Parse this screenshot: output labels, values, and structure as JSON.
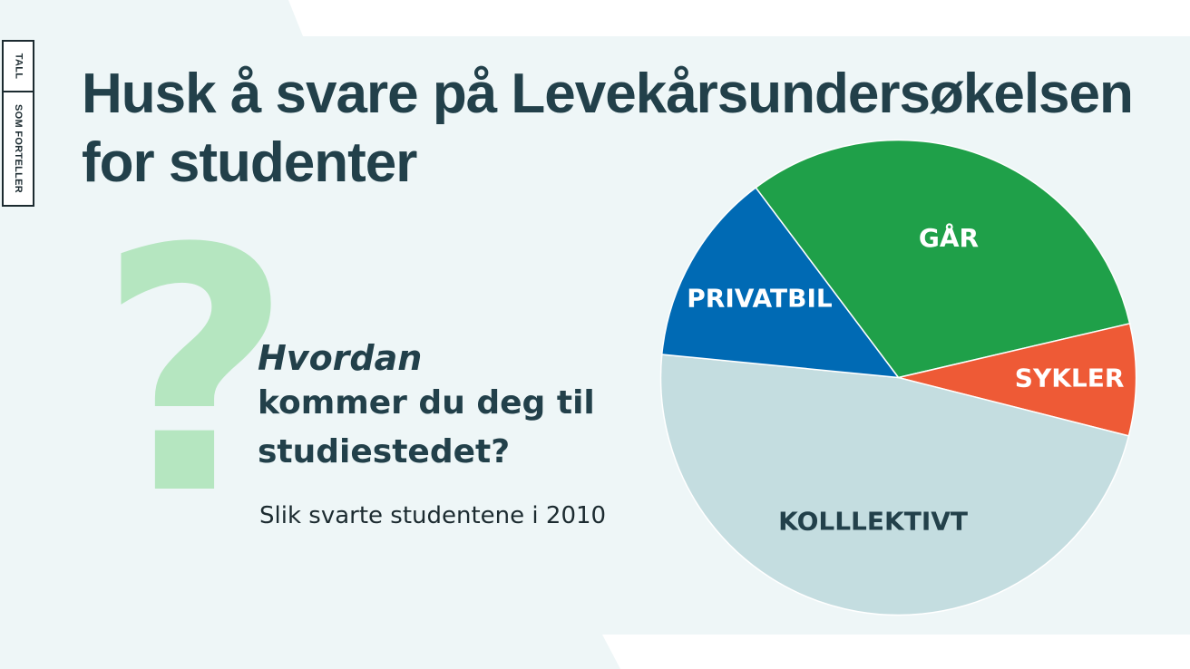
{
  "logo": {
    "top": "TALL",
    "bottom": "SOM FORTELLER"
  },
  "title": "Husk å svare på Levekårsundersøkelsen for studenter",
  "question": {
    "emphasis": "Hvordan",
    "rest": "kommer du deg til studiestedet?"
  },
  "subtitle": "Slik svarte studentene i 2010",
  "colors": {
    "panel": "#eef6f7",
    "title": "#22404a",
    "question_mark": "#b5e6c0"
  },
  "chart_data": {
    "type": "pie",
    "title": "",
    "series": [
      {
        "label": "GÅR",
        "value": 31.6,
        "color": "#1fa049",
        "label_color": "#ffffff"
      },
      {
        "label": "SYKLER",
        "value": 7.6,
        "color": "#ee5a36",
        "label_color": "#ffffff"
      },
      {
        "label": "KOLLLEKTIVT",
        "value": 47.6,
        "color": "#c4dde0",
        "label_color": "#22404a"
      },
      {
        "label": "PRIVATBIL",
        "value": 13.2,
        "color": "#006ab4",
        "label_color": "#ffffff"
      }
    ],
    "legend": "none"
  }
}
